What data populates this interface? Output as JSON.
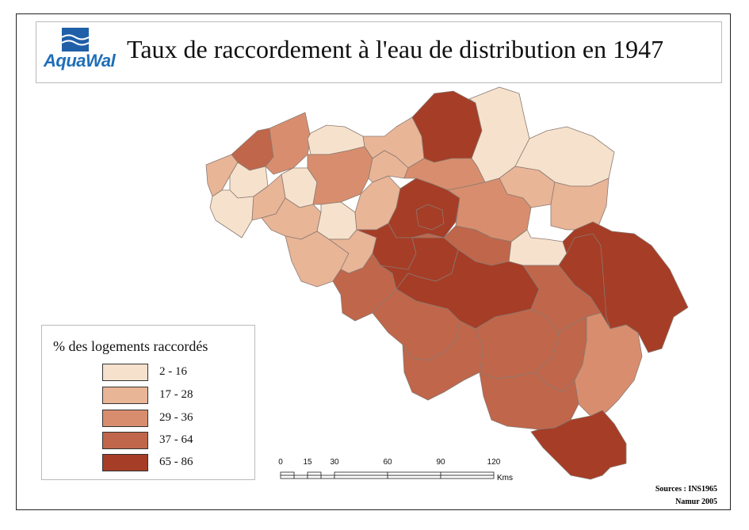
{
  "title": "Taux de raccordement à l'eau de distribution en 1947",
  "logo": {
    "text": "AquaWal",
    "color": "#1f6fb8"
  },
  "legend": {
    "title": "% des logements raccordés",
    "classes": [
      {
        "label": "2 - 16",
        "color": "#f6e2cc"
      },
      {
        "label": "17 - 28",
        "color": "#e9b597"
      },
      {
        "label": "29 - 36",
        "color": "#d88e6e"
      },
      {
        "label": "37 - 64",
        "color": "#c0664a"
      },
      {
        "label": "65 - 86",
        "color": "#a63d26"
      }
    ]
  },
  "scale": {
    "ticks": [
      "0",
      "15",
      "30",
      "60",
      "90",
      "120"
    ],
    "unit": "Kms"
  },
  "sources": {
    "line1": "Sources : INS1965",
    "line2": "Namur 2005"
  },
  "colors": {
    "border": "#8a7a72",
    "frame": "#222222"
  }
}
